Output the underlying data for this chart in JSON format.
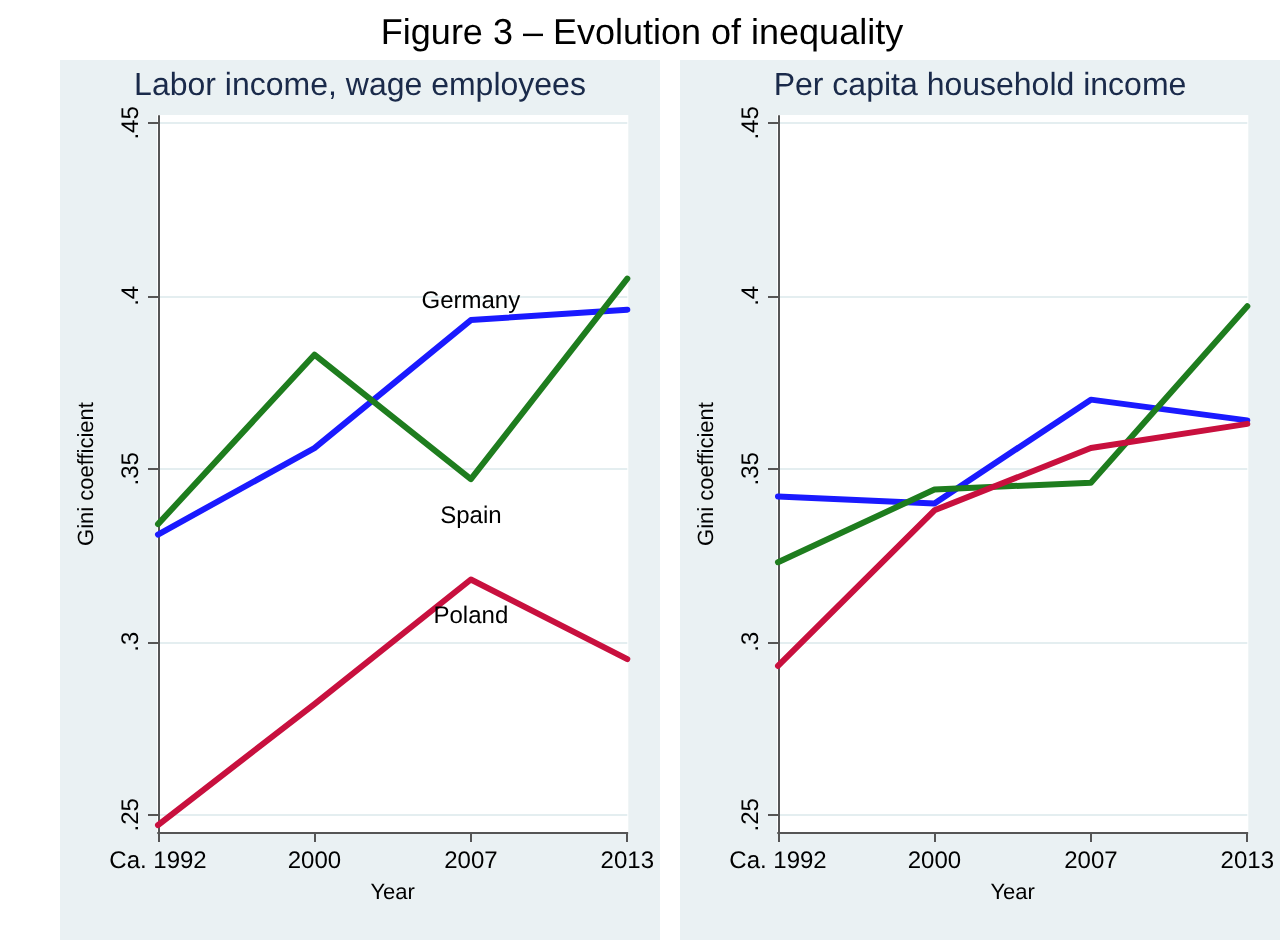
{
  "chart_data": [
    {
      "type": "other",
      "title": "Figure 3 – Evolution of inequality"
    },
    {
      "type": "line",
      "title": "Labor income, wage employees",
      "xlabel": "Year",
      "ylabel": "Gini coefficient",
      "categories": [
        "Ca. 1992",
        "2000",
        "2007",
        "2013"
      ],
      "series": [
        {
          "name": "Germany",
          "color": "#1a1aff",
          "values": [
            0.331,
            0.356,
            0.393,
            0.396
          ]
        },
        {
          "name": "Spain",
          "color": "#1e7d1e",
          "values": [
            0.334,
            0.383,
            0.347,
            0.405
          ]
        },
        {
          "name": "Poland",
          "color": "#c8103e",
          "values": [
            0.247,
            0.282,
            0.318,
            0.295
          ]
        }
      ],
      "ylim": [
        0.245,
        0.452
      ],
      "yticks": [
        {
          "value": 0.25,
          "label": ".25"
        },
        {
          "value": 0.3,
          "label": ".3"
        },
        {
          "value": 0.35,
          "label": ".35"
        },
        {
          "value": 0.4,
          "label": ".4"
        },
        {
          "value": 0.45,
          "label": ".45"
        }
      ],
      "grid": "y",
      "legend": false
    },
    {
      "type": "line",
      "title": "Per capita household income",
      "xlabel": "Year",
      "ylabel": "Gini coefficient",
      "categories": [
        "Ca. 1992",
        "2000",
        "2007",
        "2013"
      ],
      "series": [
        {
          "color": "#1a1aff",
          "values": [
            0.342,
            0.34,
            0.37,
            0.364
          ]
        },
        {
          "color": "#1e7d1e",
          "values": [
            0.323,
            0.344,
            0.346,
            0.397
          ]
        },
        {
          "color": "#c8103e",
          "values": [
            0.293,
            0.338,
            0.356,
            0.363
          ]
        }
      ],
      "ylim": [
        0.245,
        0.452
      ],
      "yticks": [
        {
          "value": 0.25,
          "label": ".25"
        },
        {
          "value": 0.3,
          "label": ".3"
        },
        {
          "value": 0.35,
          "label": ".35"
        },
        {
          "value": 0.4,
          "label": ".4"
        },
        {
          "value": 0.45,
          "label": ".45"
        }
      ],
      "grid": "y",
      "legend": false
    }
  ]
}
